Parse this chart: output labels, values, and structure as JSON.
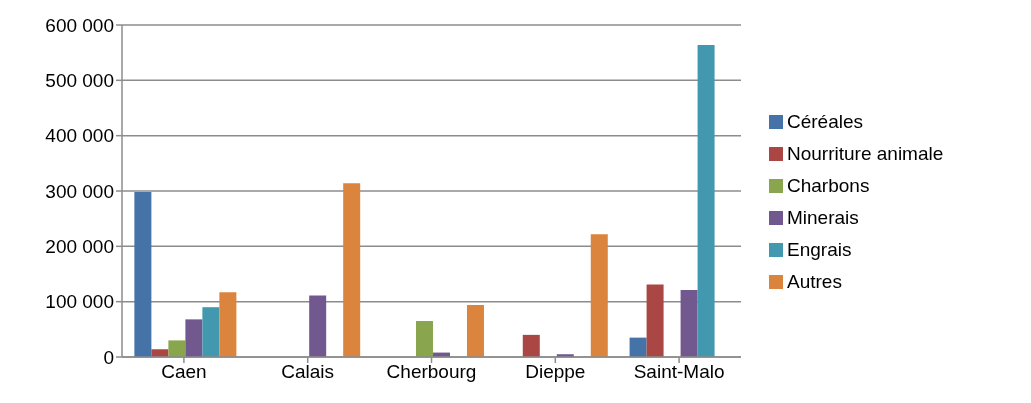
{
  "chart_data": {
    "type": "bar",
    "categories": [
      "Caen",
      "Calais",
      "Cherbourg",
      "Dieppe",
      "Saint-Malo"
    ],
    "series": [
      {
        "name": "Céréales",
        "color": "#4572a7",
        "values": [
          298000,
          null,
          null,
          null,
          35000
        ]
      },
      {
        "name": "Nourriture animale",
        "color": "#aa4643",
        "values": [
          14000,
          null,
          null,
          40000,
          131000
        ]
      },
      {
        "name": "Charbons",
        "color": "#89a54e",
        "values": [
          30000,
          null,
          65000,
          null,
          null
        ]
      },
      {
        "name": "Minerais",
        "color": "#71588f",
        "values": [
          68000,
          111000,
          8000,
          5000,
          121000
        ]
      },
      {
        "name": "Engrais",
        "color": "#4198af",
        "values": [
          90000,
          null,
          null,
          null,
          564000
        ]
      },
      {
        "name": "Autres",
        "color": "#db843d",
        "values": [
          117000,
          314000,
          94000,
          222000,
          null
        ]
      }
    ],
    "ylim": [
      0,
      600000
    ],
    "yticks": [
      {
        "value": 0,
        "label": "0"
      },
      {
        "value": 100000,
        "label": "100 000"
      },
      {
        "value": 200000,
        "label": "200 000"
      },
      {
        "value": 300000,
        "label": "300 000"
      },
      {
        "value": 400000,
        "label": "400 000"
      },
      {
        "value": 500000,
        "label": "500 000"
      },
      {
        "value": 600000,
        "label": "600 000"
      }
    ],
    "grid": "y",
    "legend": "right"
  }
}
